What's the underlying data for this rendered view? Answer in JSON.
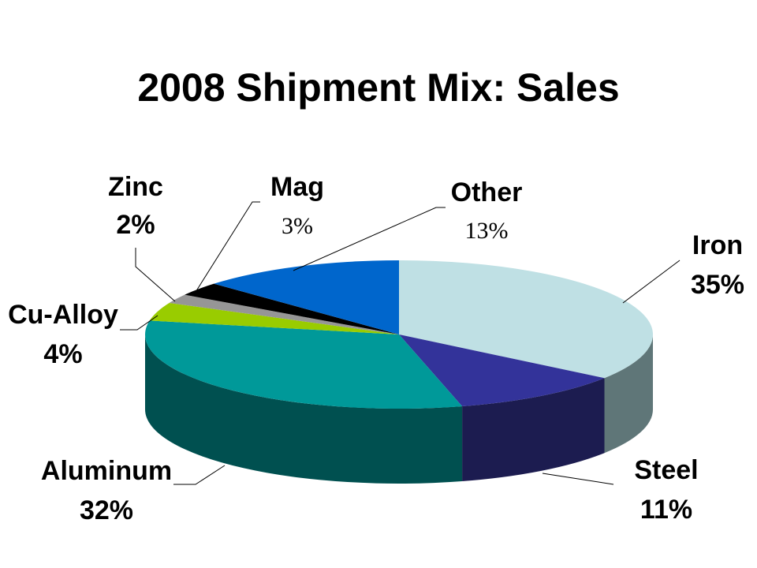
{
  "chart_data": {
    "type": "pie",
    "title": "2008 Shipment Mix: Sales",
    "three_d": true,
    "legend": "none",
    "slices": [
      {
        "name": "Iron",
        "value": 35,
        "label": "35%",
        "color": "#bfe0e4",
        "side": "#5f7678"
      },
      {
        "name": "Steel",
        "value": 11,
        "label": "11%",
        "color": "#33339a",
        "side": "#1c1c50"
      },
      {
        "name": "Aluminum",
        "value": 32,
        "label": "32%",
        "color": "#009999",
        "side": "#005050"
      },
      {
        "name": "Cu-Alloy",
        "value": 4,
        "label": "4%",
        "color": "#99cc00",
        "side": "#556f00"
      },
      {
        "name": "Zinc",
        "value": 2,
        "label": "2%",
        "color": "#969696",
        "side": "#505050"
      },
      {
        "name": "Mag",
        "value": 3,
        "label": "3%",
        "color": "#000000",
        "side": "#000000"
      },
      {
        "name": "Other",
        "value": 13,
        "label": "13%",
        "color": "#0066cc",
        "side": "#003a75"
      }
    ]
  }
}
